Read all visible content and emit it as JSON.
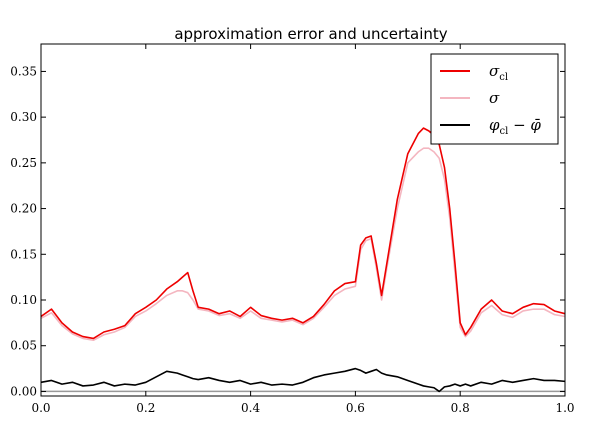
{
  "chart_data": {
    "type": "line",
    "title": "approximation error and uncertainty",
    "xlabel": "",
    "ylabel": "",
    "xlim": [
      0.0,
      1.0
    ],
    "ylim": [
      -0.005,
      0.38
    ],
    "x_ticks": [
      "0.0",
      "0.2",
      "0.4",
      "0.6",
      "0.8",
      "1.0"
    ],
    "y_ticks": [
      "0.00",
      "0.05",
      "0.10",
      "0.15",
      "0.20",
      "0.25",
      "0.30",
      "0.35"
    ],
    "grid": false,
    "legend_position": "top-right",
    "legend": [
      {
        "symbol": "σ",
        "subscript": "cl",
        "color": "#ee0000",
        "series": "sigma_cl"
      },
      {
        "symbol": "σ",
        "subscript": "",
        "color": "#f4b6c0",
        "series": "sigma"
      },
      {
        "symbol": "φ",
        "subscript": "cl",
        "suffix": " − φ̄",
        "color": "#000000",
        "series": "phi_diff"
      }
    ],
    "x": [
      0.0,
      0.02,
      0.04,
      0.06,
      0.08,
      0.1,
      0.12,
      0.14,
      0.16,
      0.18,
      0.2,
      0.22,
      0.24,
      0.26,
      0.27,
      0.28,
      0.29,
      0.3,
      0.32,
      0.34,
      0.36,
      0.38,
      0.4,
      0.42,
      0.44,
      0.46,
      0.48,
      0.5,
      0.52,
      0.54,
      0.56,
      0.58,
      0.6,
      0.61,
      0.62,
      0.63,
      0.64,
      0.65,
      0.66,
      0.68,
      0.7,
      0.72,
      0.73,
      0.74,
      0.75,
      0.76,
      0.77,
      0.78,
      0.79,
      0.8,
      0.81,
      0.82,
      0.84,
      0.86,
      0.88,
      0.9,
      0.92,
      0.94,
      0.96,
      0.98,
      1.0
    ],
    "series": [
      {
        "id": "sigma_cl",
        "color": "#ee0000",
        "values": [
          0.082,
          0.09,
          0.075,
          0.065,
          0.06,
          0.058,
          0.065,
          0.068,
          0.072,
          0.085,
          0.092,
          0.1,
          0.112,
          0.12,
          0.125,
          0.13,
          0.11,
          0.092,
          0.09,
          0.085,
          0.088,
          0.082,
          0.092,
          0.083,
          0.08,
          0.078,
          0.08,
          0.075,
          0.082,
          0.095,
          0.11,
          0.118,
          0.12,
          0.16,
          0.168,
          0.17,
          0.14,
          0.105,
          0.14,
          0.21,
          0.26,
          0.282,
          0.288,
          0.285,
          0.28,
          0.27,
          0.245,
          0.2,
          0.14,
          0.075,
          0.062,
          0.07,
          0.09,
          0.1,
          0.088,
          0.085,
          0.092,
          0.096,
          0.095,
          0.088,
          0.085
        ]
      },
      {
        "id": "sigma",
        "color": "#f4b6c0",
        "values": [
          0.08,
          0.086,
          0.072,
          0.063,
          0.058,
          0.056,
          0.062,
          0.065,
          0.07,
          0.082,
          0.088,
          0.096,
          0.105,
          0.11,
          0.11,
          0.108,
          0.1,
          0.09,
          0.088,
          0.083,
          0.085,
          0.08,
          0.088,
          0.08,
          0.078,
          0.076,
          0.078,
          0.073,
          0.08,
          0.092,
          0.105,
          0.112,
          0.115,
          0.155,
          0.165,
          0.167,
          0.135,
          0.1,
          0.135,
          0.2,
          0.25,
          0.262,
          0.266,
          0.266,
          0.262,
          0.255,
          0.232,
          0.19,
          0.13,
          0.07,
          0.06,
          0.066,
          0.086,
          0.094,
          0.084,
          0.081,
          0.088,
          0.09,
          0.09,
          0.084,
          0.082
        ]
      },
      {
        "id": "phi_diff",
        "color": "#000000",
        "values": [
          0.01,
          0.012,
          0.008,
          0.01,
          0.006,
          0.007,
          0.01,
          0.006,
          0.008,
          0.007,
          0.01,
          0.016,
          0.022,
          0.02,
          0.018,
          0.016,
          0.014,
          0.013,
          0.015,
          0.012,
          0.01,
          0.012,
          0.008,
          0.01,
          0.007,
          0.008,
          0.007,
          0.01,
          0.015,
          0.018,
          0.02,
          0.022,
          0.025,
          0.023,
          0.02,
          0.022,
          0.024,
          0.02,
          0.018,
          0.016,
          0.012,
          0.008,
          0.006,
          0.005,
          0.004,
          0.0,
          0.005,
          0.006,
          0.008,
          0.006,
          0.008,
          0.006,
          0.01,
          0.008,
          0.012,
          0.01,
          0.012,
          0.014,
          0.012,
          0.012,
          0.011
        ]
      }
    ]
  }
}
